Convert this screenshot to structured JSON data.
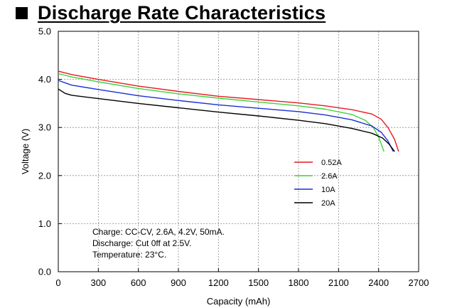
{
  "page": {
    "title": "Discharge Rate Characteristics"
  },
  "chart_data": {
    "type": "line",
    "xlabel": "Capacity (mAh)",
    "ylabel": "Voltage (V)",
    "xlim": [
      0,
      2700
    ],
    "ylim": [
      0.0,
      5.0
    ],
    "x_ticks": [
      "0",
      "300",
      "600",
      "900",
      "1200",
      "1500",
      "1800",
      "2100",
      "2400",
      "2700"
    ],
    "y_ticks": [
      "0.0",
      "1.0",
      "2.0",
      "3.0",
      "4.0",
      "5.0"
    ],
    "grid": true,
    "legend_position": "right-middle",
    "series": [
      {
        "name": "0.52A",
        "color": "#e8191f",
        "x": [
          0,
          100,
          300,
          600,
          900,
          1200,
          1500,
          1800,
          2000,
          2200,
          2350,
          2420,
          2470,
          2520,
          2550
        ],
        "y": [
          4.17,
          4.1,
          4.0,
          3.86,
          3.75,
          3.65,
          3.58,
          3.51,
          3.45,
          3.37,
          3.28,
          3.17,
          3.0,
          2.75,
          2.5
        ]
      },
      {
        "name": "2.6A",
        "color": "#3cd43c",
        "x": [
          0,
          100,
          300,
          600,
          900,
          1200,
          1500,
          1800,
          2000,
          2200,
          2300,
          2360,
          2400,
          2440
        ],
        "y": [
          4.12,
          4.05,
          3.95,
          3.81,
          3.7,
          3.61,
          3.53,
          3.45,
          3.38,
          3.27,
          3.15,
          3.0,
          2.8,
          2.5
        ]
      },
      {
        "name": "10A",
        "color": "#1a2fd6",
        "x": [
          0,
          100,
          300,
          600,
          900,
          1200,
          1500,
          1800,
          2000,
          2200,
          2350,
          2420,
          2470,
          2510
        ],
        "y": [
          3.98,
          3.88,
          3.79,
          3.66,
          3.56,
          3.47,
          3.4,
          3.33,
          3.26,
          3.16,
          3.03,
          2.9,
          2.72,
          2.5
        ]
      },
      {
        "name": "20A",
        "color": "#000000",
        "x": [
          0,
          50,
          100,
          300,
          600,
          900,
          1200,
          1500,
          1800,
          2000,
          2200,
          2350,
          2430,
          2480,
          2520
        ],
        "y": [
          3.8,
          3.71,
          3.67,
          3.6,
          3.5,
          3.41,
          3.32,
          3.24,
          3.15,
          3.08,
          2.98,
          2.88,
          2.78,
          2.65,
          2.5
        ]
      }
    ],
    "annotations": [
      "Charge: CC-CV, 2.6A, 4.2V, 50mA.",
      "Discharge: Cut 0ff at 2.5V.",
      "Temperature: 23°C."
    ]
  }
}
